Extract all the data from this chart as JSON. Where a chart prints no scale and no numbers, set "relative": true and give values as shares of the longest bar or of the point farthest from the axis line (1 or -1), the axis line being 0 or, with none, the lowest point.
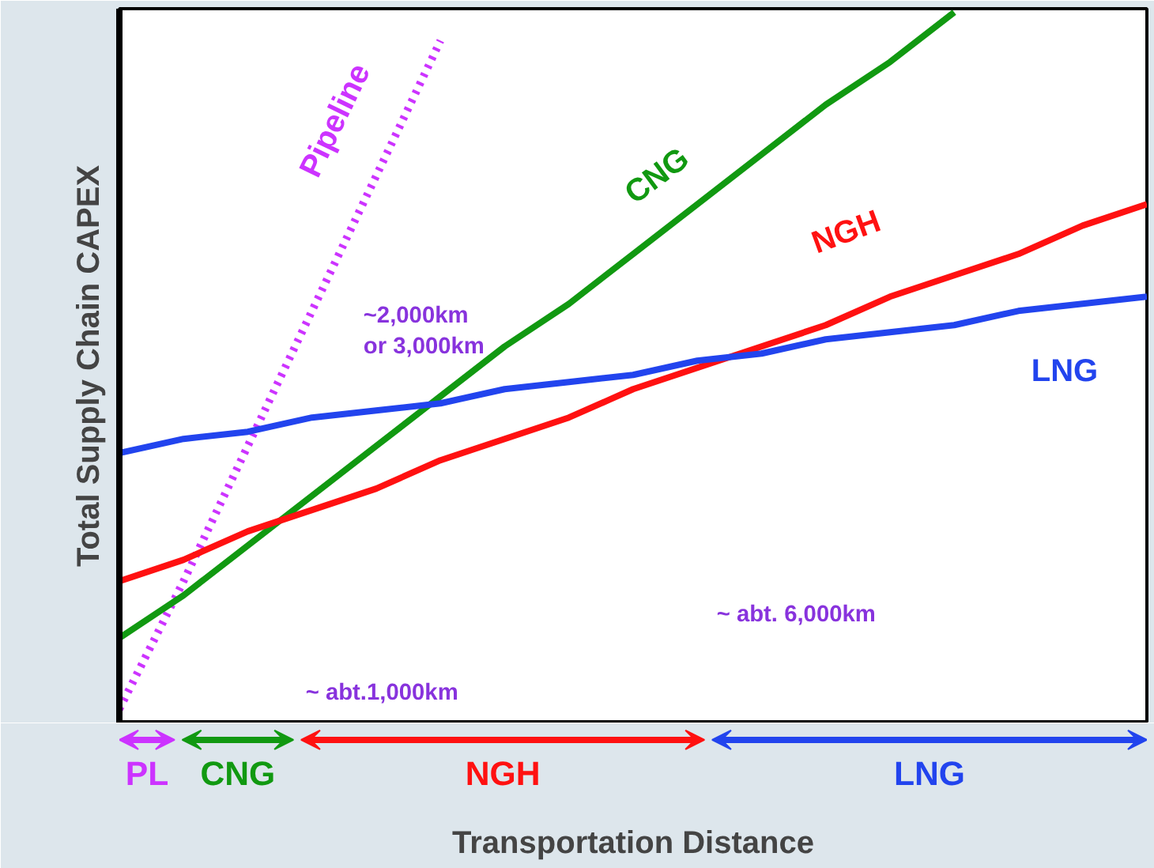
{
  "chart_data": {
    "type": "line",
    "relative": true,
    "xlabel": "Transportation Distance",
    "ylabel": "Total Supply Chain CAPEX",
    "categories": [
      null,
      null,
      null,
      null,
      null,
      null,
      null,
      null,
      null,
      null,
      null,
      null,
      null,
      null,
      null,
      null,
      null
    ],
    "series": [
      {
        "name": "Pipeline",
        "color": "#cc33ff",
        "line_style": "dotted",
        "values": [
          0.02,
          0.2,
          0.39,
          0.58,
          0.77,
          0.96,
          null,
          null,
          null,
          null,
          null,
          null,
          null,
          null,
          null,
          null,
          null
        ]
      },
      {
        "name": "CNG",
        "color": "#119911",
        "values": [
          0.12,
          0.18,
          0.25,
          0.32,
          0.39,
          0.46,
          0.53,
          0.59,
          0.66,
          0.73,
          0.8,
          0.87,
          0.93,
          1.0,
          null,
          null,
          null
        ]
      },
      {
        "name": "NGH",
        "color": "#ff1111",
        "values": [
          0.2,
          0.23,
          0.27,
          0.3,
          0.33,
          0.37,
          0.4,
          0.43,
          0.47,
          0.5,
          0.53,
          0.56,
          0.6,
          0.63,
          0.66,
          0.7,
          0.73
        ]
      },
      {
        "name": "LNG",
        "color": "#2244ee",
        "values": [
          0.38,
          0.4,
          0.41,
          0.43,
          0.44,
          0.45,
          0.47,
          0.48,
          0.49,
          0.51,
          0.52,
          0.54,
          0.55,
          0.56,
          0.58,
          0.59,
          0.6
        ]
      }
    ],
    "annotations": [
      "~ abt.1,000km",
      "~2,000km\nor 3,000km",
      "~ abt. 6,000km",
      "PL",
      "CNG",
      "NGH",
      "LNG"
    ]
  }
}
